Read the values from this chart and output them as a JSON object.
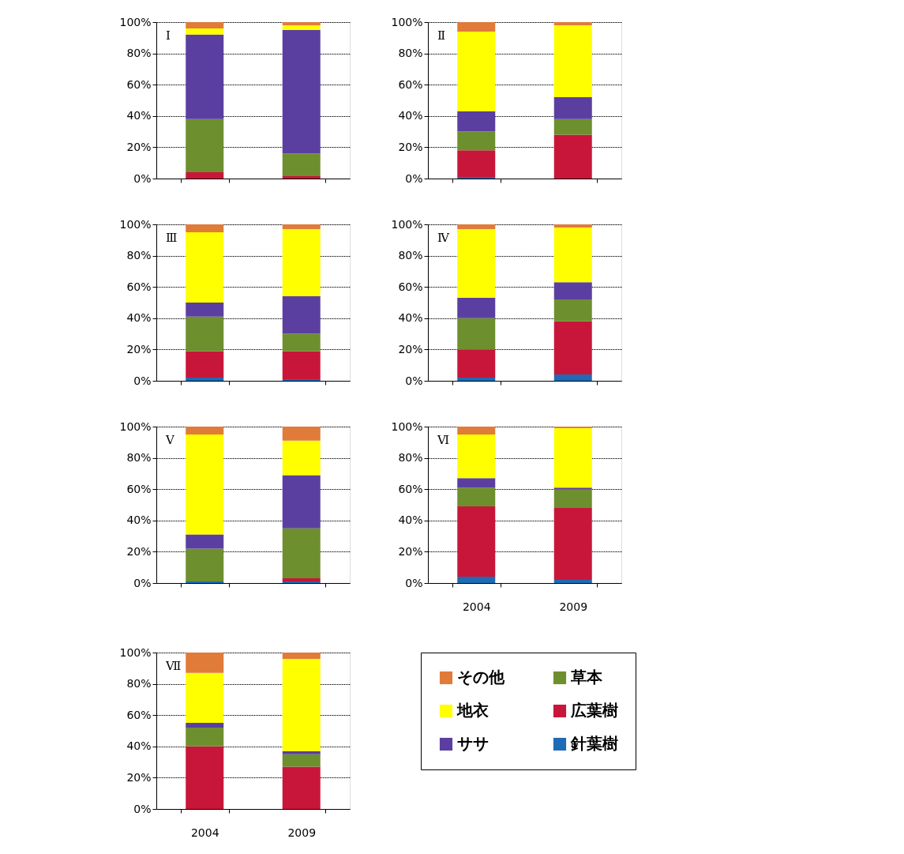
{
  "chart_data": [
    {
      "type": "bar",
      "stacked": true,
      "categories": [
        "2004",
        "2009"
      ],
      "ylim": [
        0,
        100
      ],
      "yticks": [
        {
          "value": 0,
          "label": "0%"
        },
        {
          "value": 20,
          "label": "20%"
        },
        {
          "value": 40,
          "label": "40%"
        },
        {
          "value": 60,
          "label": "60%"
        },
        {
          "value": 80,
          "label": "80%"
        },
        {
          "value": 100,
          "label": "100%"
        }
      ],
      "grid": "y",
      "tick_labels": "y",
      "annotations": [
        "Ⅰ"
      ],
      "series": [
        {
          "color": "#1f6bb5",
          "values": [
            0,
            0
          ]
        },
        {
          "color": "#c8163a",
          "values": [
            4,
            1.5
          ]
        },
        {
          "color": "#6e8f2e",
          "values": [
            34,
            14.5
          ]
        },
        {
          "color": "#5b3fa0",
          "values": [
            54,
            79
          ]
        },
        {
          "color": "#ffff00",
          "values": [
            4,
            3
          ]
        },
        {
          "color": "#e07b39",
          "values": [
            4,
            2
          ]
        }
      ]
    },
    {
      "type": "bar",
      "stacked": true,
      "categories": [
        "2004",
        "2009"
      ],
      "ylim": [
        0,
        100
      ],
      "yticks": [
        {
          "value": 0,
          "label": "0%"
        },
        {
          "value": 20,
          "label": "20%"
        },
        {
          "value": 40,
          "label": "40%"
        },
        {
          "value": 60,
          "label": "60%"
        },
        {
          "value": 80,
          "label": "80%"
        },
        {
          "value": 100,
          "label": "100%"
        }
      ],
      "grid": "y",
      "tick_labels": "y",
      "annotations": [
        "Ⅱ"
      ],
      "series": [
        {
          "color": "#1f6bb5",
          "values": [
            1,
            0
          ]
        },
        {
          "color": "#c8163a",
          "values": [
            17,
            28
          ]
        },
        {
          "color": "#6e8f2e",
          "values": [
            12,
            10
          ]
        },
        {
          "color": "#5b3fa0",
          "values": [
            13,
            14
          ]
        },
        {
          "color": "#ffff00",
          "values": [
            51,
            46
          ]
        },
        {
          "color": "#e07b39",
          "values": [
            6,
            2
          ]
        }
      ]
    },
    {
      "type": "bar",
      "stacked": true,
      "categories": [
        "2004",
        "2009"
      ],
      "ylim": [
        0,
        100
      ],
      "yticks": [
        {
          "value": 0,
          "label": "0%"
        },
        {
          "value": 20,
          "label": "20%"
        },
        {
          "value": 40,
          "label": "40%"
        },
        {
          "value": 60,
          "label": "60%"
        },
        {
          "value": 80,
          "label": "80%"
        },
        {
          "value": 100,
          "label": "100%"
        }
      ],
      "grid": "y",
      "tick_labels": "y",
      "annotations": [
        "Ⅲ"
      ],
      "series": [
        {
          "color": "#1f6bb5",
          "values": [
            2,
            1
          ]
        },
        {
          "color": "#c8163a",
          "values": [
            17,
            18
          ]
        },
        {
          "color": "#6e8f2e",
          "values": [
            22,
            11
          ]
        },
        {
          "color": "#5b3fa0",
          "values": [
            9,
            24
          ]
        },
        {
          "color": "#ffff00",
          "values": [
            45,
            43
          ]
        },
        {
          "color": "#e07b39",
          "values": [
            5,
            3
          ]
        }
      ]
    },
    {
      "type": "bar",
      "stacked": true,
      "categories": [
        "2004",
        "2009"
      ],
      "ylim": [
        0,
        100
      ],
      "yticks": [
        {
          "value": 0,
          "label": "0%"
        },
        {
          "value": 20,
          "label": "20%"
        },
        {
          "value": 40,
          "label": "40%"
        },
        {
          "value": 60,
          "label": "60%"
        },
        {
          "value": 80,
          "label": "80%"
        },
        {
          "value": 100,
          "label": "100%"
        }
      ],
      "grid": "y",
      "tick_labels": "y",
      "annotations": [
        "Ⅳ"
      ],
      "series": [
        {
          "color": "#1f6bb5",
          "values": [
            2,
            4
          ]
        },
        {
          "color": "#c8163a",
          "values": [
            18,
            34
          ]
        },
        {
          "color": "#6e8f2e",
          "values": [
            20,
            14
          ]
        },
        {
          "color": "#5b3fa0",
          "values": [
            13,
            11
          ]
        },
        {
          "color": "#ffff00",
          "values": [
            44,
            35
          ]
        },
        {
          "color": "#e07b39",
          "values": [
            3,
            2
          ]
        }
      ]
    },
    {
      "type": "bar",
      "stacked": true,
      "categories": [
        "2004",
        "2009"
      ],
      "ylim": [
        0,
        100
      ],
      "yticks": [
        {
          "value": 0,
          "label": "0%"
        },
        {
          "value": 20,
          "label": "20%"
        },
        {
          "value": 40,
          "label": "40%"
        },
        {
          "value": 60,
          "label": "60%"
        },
        {
          "value": 80,
          "label": "80%"
        },
        {
          "value": 100,
          "label": "100%"
        }
      ],
      "grid": "y",
      "tick_labels": "y",
      "annotations": [
        "Ⅴ"
      ],
      "series": [
        {
          "color": "#1f6bb5",
          "values": [
            1,
            1
          ]
        },
        {
          "color": "#c8163a",
          "values": [
            0,
            2
          ]
        },
        {
          "color": "#6e8f2e",
          "values": [
            21,
            32
          ]
        },
        {
          "color": "#5b3fa0",
          "values": [
            9,
            34
          ]
        },
        {
          "color": "#ffff00",
          "values": [
            64,
            22
          ]
        },
        {
          "color": "#e07b39",
          "values": [
            5,
            9
          ]
        }
      ]
    },
    {
      "type": "bar",
      "stacked": true,
      "categories": [
        "2004",
        "2009"
      ],
      "ylim": [
        0,
        100
      ],
      "yticks": [
        {
          "value": 0,
          "label": "0%"
        },
        {
          "value": 20,
          "label": "20%"
        },
        {
          "value": 40,
          "label": "40%"
        },
        {
          "value": 60,
          "label": "60%"
        },
        {
          "value": 80,
          "label": "80%"
        },
        {
          "value": 100,
          "label": "100%"
        }
      ],
      "grid": "y",
      "annotations": [
        "Ⅵ"
      ],
      "series": [
        {
          "color": "#1f6bb5",
          "values": [
            4,
            2
          ]
        },
        {
          "color": "#c8163a",
          "values": [
            45,
            46
          ]
        },
        {
          "color": "#6e8f2e",
          "values": [
            12,
            12
          ]
        },
        {
          "color": "#5b3fa0",
          "values": [
            6,
            1
          ]
        },
        {
          "color": "#ffff00",
          "values": [
            28,
            38
          ]
        },
        {
          "color": "#e07b39",
          "values": [
            5,
            1
          ]
        }
      ]
    },
    {
      "type": "bar",
      "stacked": true,
      "categories": [
        "2004",
        "2009"
      ],
      "ylim": [
        0,
        100
      ],
      "yticks": [
        {
          "value": 0,
          "label": "0%"
        },
        {
          "value": 20,
          "label": "20%"
        },
        {
          "value": 40,
          "label": "40%"
        },
        {
          "value": 60,
          "label": "60%"
        },
        {
          "value": 80,
          "label": "80%"
        },
        {
          "value": 100,
          "label": "100%"
        }
      ],
      "grid": "y",
      "legend": "right",
      "annotations": [
        "Ⅶ"
      ],
      "series": [
        {
          "name": "針葉樹",
          "color": "#1f6bb5",
          "values": [
            0,
            0
          ]
        },
        {
          "name": "広葉樹",
          "color": "#c8163a",
          "values": [
            40,
            27
          ]
        },
        {
          "name": "草本",
          "color": "#6e8f2e",
          "values": [
            12,
            8
          ]
        },
        {
          "name": "ササ",
          "color": "#5b3fa0",
          "values": [
            3,
            2
          ]
        },
        {
          "name": "地衣",
          "color": "#ffff00",
          "values": [
            32,
            59
          ]
        },
        {
          "name": "その他",
          "color": "#e07b39",
          "values": [
            13,
            4
          ]
        }
      ]
    }
  ]
}
